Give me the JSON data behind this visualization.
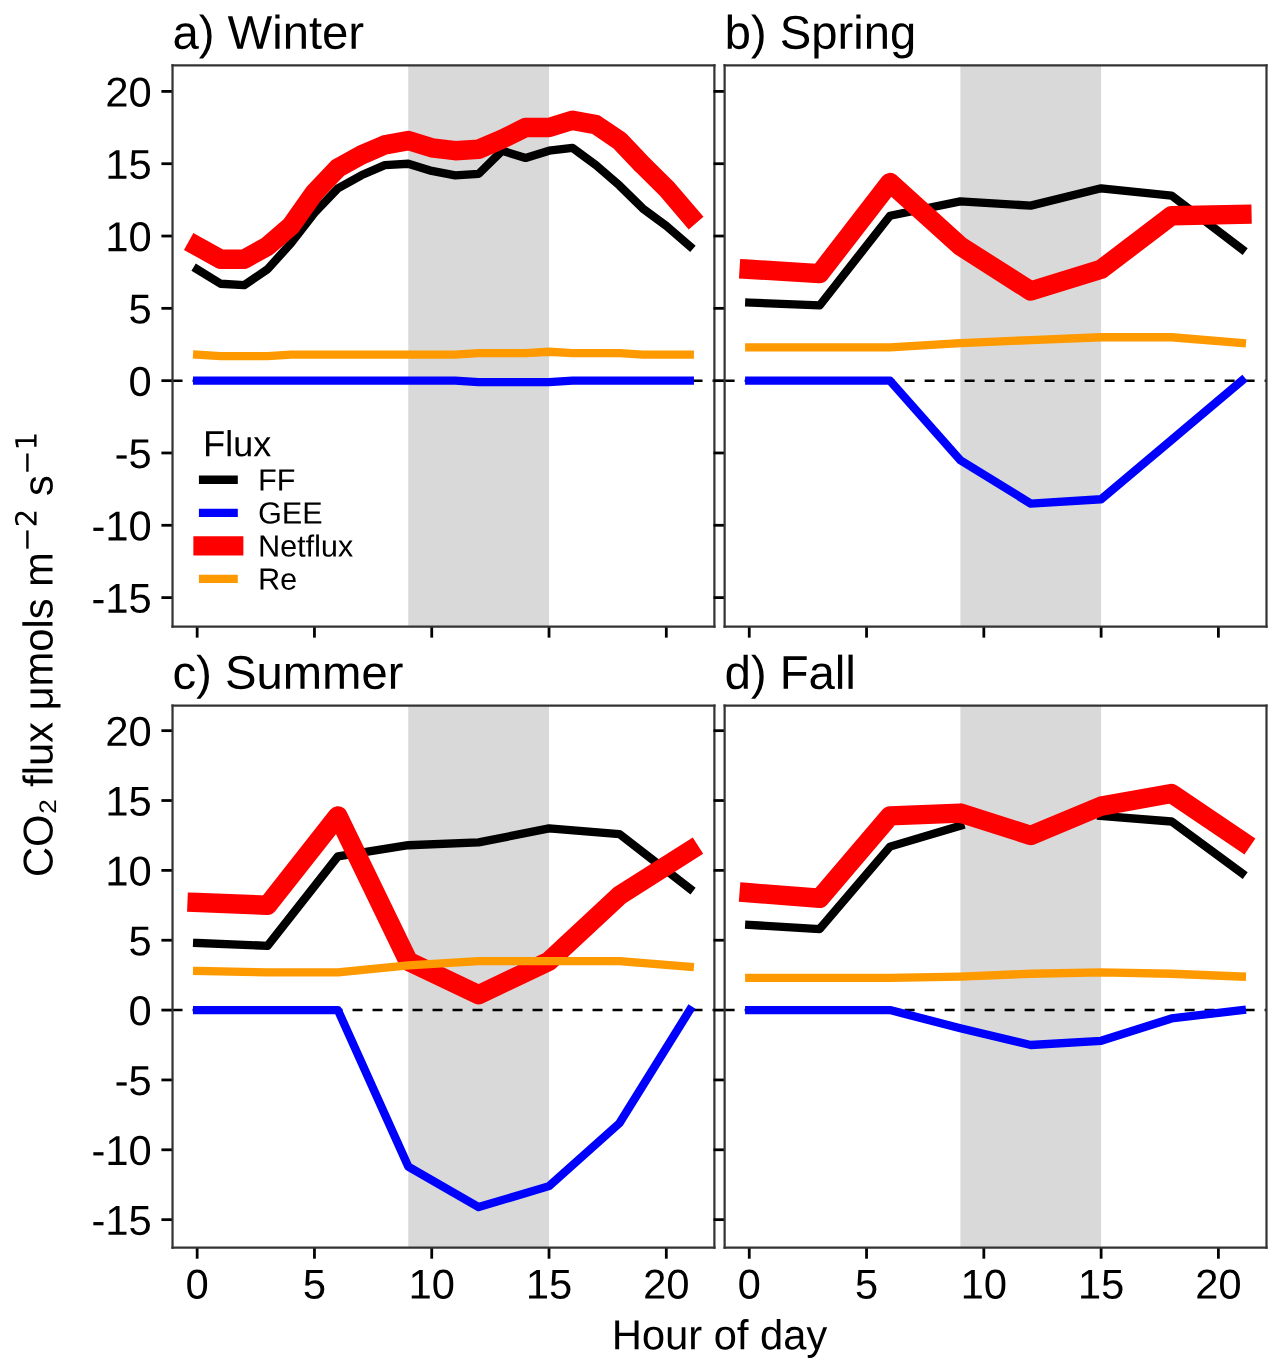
{
  "chart_data": [
    {
      "type": "line",
      "title": "a) Winter",
      "ylabel": "CO₂ flux μmols m$^{−2}$ s$^{−1}$",
      "legend_title": "Flux",
      "legend": "bottom left",
      "grid": false,
      "tick_labels": "y",
      "x": [
        0,
        1,
        2,
        3,
        4,
        5,
        6,
        7,
        8,
        9,
        10,
        11,
        12,
        13,
        14,
        15,
        16,
        17,
        18,
        19,
        20,
        21
      ],
      "xlim": [
        -1.05,
        22.05
      ],
      "xticks": [
        0,
        5,
        10,
        15,
        20
      ],
      "ylim": [
        -17,
        21.8
      ],
      "yticks": [
        -15,
        -10,
        -5,
        0,
        5,
        10,
        15,
        20
      ],
      "series": [
        {
          "name": "FF",
          "color": "#000000",
          "values": [
            7.7,
            6.7,
            6.6,
            7.7,
            9.5,
            11.6,
            13.3,
            14.2,
            14.9,
            15.0,
            14.5,
            14.2,
            14.3,
            15.9,
            15.4,
            15.9,
            16.1,
            14.9,
            13.5,
            11.9,
            10.7,
            9.3
          ]
        },
        {
          "name": "GEE",
          "color": "#0000ff",
          "values": [
            0,
            0,
            0,
            0,
            0,
            0,
            0,
            0,
            0,
            0,
            0,
            0,
            -0.1,
            -0.1,
            -0.1,
            -0.1,
            0,
            0,
            0,
            0,
            0,
            0
          ]
        },
        {
          "name": "Netflux",
          "color": "#ff0000",
          "values": [
            9.3,
            8.4,
            8.4,
            9.3,
            10.7,
            13.0,
            14.7,
            15.6,
            16.3,
            16.6,
            16.1,
            15.9,
            16.0,
            16.7,
            17.5,
            17.5,
            18.0,
            17.7,
            16.6,
            14.9,
            13.3,
            11.4
          ]
        },
        {
          "name": "Re",
          "color": "#ff9900",
          "values": [
            1.8,
            1.7,
            1.7,
            1.7,
            1.8,
            1.8,
            1.8,
            1.8,
            1.8,
            1.8,
            1.8,
            1.8,
            1.9,
            1.9,
            1.9,
            2.0,
            1.9,
            1.9,
            1.9,
            1.8,
            1.8,
            1.8
          ]
        }
      ],
      "bands": [
        {
          "axis": "x",
          "from": 9,
          "to": 15,
          "color": "#d9d9d9"
        }
      ],
      "ref_lines": [
        {
          "axis": "y",
          "value": 0,
          "color": "#000000",
          "line_style": "dashed"
        }
      ]
    },
    {
      "type": "line",
      "title": "b) Spring",
      "grid": false,
      "tick_labels": false,
      "x": [
        0,
        3,
        6,
        9,
        12,
        15,
        18,
        21
      ],
      "xlim": [
        -1.05,
        22.05
      ],
      "xticks": [
        0,
        5,
        10,
        15,
        20
      ],
      "ylim": [
        -17,
        21.8
      ],
      "yticks": [
        -15,
        -10,
        -5,
        0,
        5,
        10,
        15,
        20
      ],
      "series": [
        {
          "color": "#000000",
          "values": [
            5.4,
            5.2,
            11.4,
            12.4,
            12.1,
            13.3,
            12.8,
            9.1
          ]
        },
        {
          "color": "#0000ff",
          "values": [
            0,
            0,
            0,
            -5.5,
            -8.5,
            -8.2,
            -4.1,
            0
          ]
        },
        {
          "color": "#ff0000",
          "values": [
            7.7,
            7.4,
            13.7,
            9.3,
            6.2,
            7.7,
            11.4,
            11.5
          ]
        },
        {
          "color": "#ff9900",
          "values": [
            2.3,
            2.3,
            2.3,
            2.6,
            2.8,
            3.0,
            3.0,
            2.6
          ]
        }
      ],
      "bands": [
        {
          "axis": "x",
          "from": 9,
          "to": 15,
          "color": "#d9d9d9"
        }
      ],
      "ref_lines": [
        {
          "axis": "y",
          "value": 0,
          "color": "#000000",
          "line_style": "dashed"
        }
      ]
    },
    {
      "type": "line",
      "title": "c) Summer",
      "xlabel": "Hour of day",
      "grid": false,
      "x": [
        0,
        3,
        6,
        9,
        12,
        15,
        18,
        21
      ],
      "xlim": [
        -1.05,
        22.05
      ],
      "xticks": [
        0,
        5,
        10,
        15,
        20
      ],
      "ylim": [
        -17,
        21.8
      ],
      "yticks": [
        -15,
        -10,
        -5,
        0,
        5,
        10,
        15,
        20
      ],
      "series": [
        {
          "color": "#000000",
          "values": [
            4.8,
            4.6,
            11.0,
            11.8,
            12.0,
            13.0,
            12.6,
            8.7
          ]
        },
        {
          "color": "#0000ff",
          "values": [
            0,
            0,
            0,
            -11.2,
            -14.1,
            -12.6,
            -8.1,
            0
          ]
        },
        {
          "color": "#ff0000",
          "values": [
            7.7,
            7.5,
            13.9,
            3.5,
            1.1,
            3.5,
            8.2,
            11.4
          ]
        },
        {
          "color": "#ff9900",
          "values": [
            2.8,
            2.7,
            2.7,
            3.2,
            3.5,
            3.5,
            3.5,
            3.1
          ]
        }
      ],
      "bands": [
        {
          "axis": "x",
          "from": 9,
          "to": 15,
          "color": "#d9d9d9"
        }
      ],
      "ref_lines": [
        {
          "axis": "y",
          "value": 0,
          "color": "#000000",
          "line_style": "dashed"
        }
      ]
    },
    {
      "type": "line",
      "title": "d) Fall",
      "grid": false,
      "tick_labels": "x",
      "x": [
        0,
        3,
        6,
        9,
        12,
        15,
        18,
        21
      ],
      "xlim": [
        -1.05,
        22.05
      ],
      "xticks": [
        0,
        5,
        10,
        15,
        20
      ],
      "ylim": [
        -17,
        21.8
      ],
      "yticks": [
        -15,
        -10,
        -5,
        0,
        5,
        10,
        15,
        20
      ],
      "series": [
        {
          "color": "#000000",
          "values": [
            6.1,
            5.8,
            11.7,
            13.2,
            null,
            13.9,
            13.5,
            9.8
          ]
        },
        {
          "color": "#0000ff",
          "values": [
            0,
            0,
            0,
            -1.3,
            -2.5,
            -2.2,
            -0.6,
            0
          ]
        },
        {
          "color": "#ff0000",
          "values": [
            8.4,
            8.0,
            13.9,
            14.1,
            12.5,
            14.6,
            15.5,
            12.1
          ]
        },
        {
          "color": "#ff9900",
          "values": [
            2.3,
            2.3,
            2.3,
            2.4,
            2.6,
            2.7,
            2.6,
            2.4
          ]
        }
      ],
      "bands": [
        {
          "axis": "x",
          "from": 9,
          "to": 15,
          "color": "#d9d9d9"
        }
      ],
      "ref_lines": [
        {
          "axis": "y",
          "value": 0,
          "color": "#000000",
          "line_style": "dashed"
        }
      ]
    }
  ]
}
